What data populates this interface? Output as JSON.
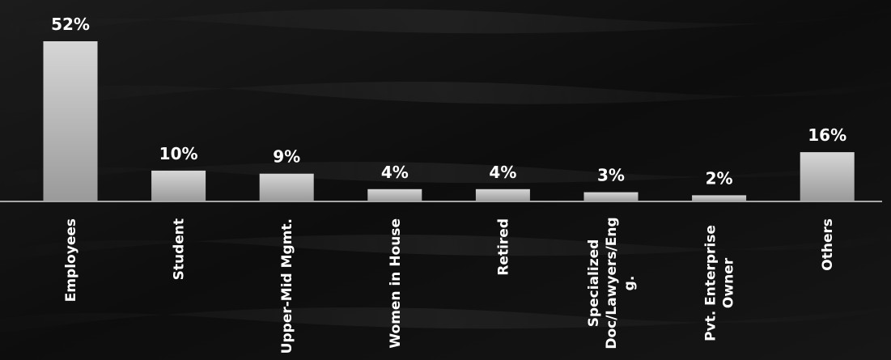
{
  "chart_data": {
    "type": "bar",
    "categories": [
      "Employees",
      "Student",
      "Upper-Mid Mgmt.",
      "Women in House",
      "Retired",
      "Specialized Doc/Lawyers/Eng g.",
      "Pvt. Enterprise Owner",
      "Others"
    ],
    "category_lines": [
      [
        "Employees"
      ],
      [
        "Student"
      ],
      [
        "Upper-Mid Mgmt."
      ],
      [
        "Women in House"
      ],
      [
        "Retired"
      ],
      [
        "Specialized",
        "Doc/Lawyers/Eng",
        "g."
      ],
      [
        "Pvt. Enterprise",
        "Owner"
      ],
      [
        "Others"
      ]
    ],
    "values": [
      52,
      10,
      9,
      4,
      4,
      3,
      2,
      16
    ],
    "value_labels": [
      "52%",
      "10%",
      "9%",
      "4%",
      "4%",
      "3%",
      "2%",
      "16%"
    ],
    "ylim": [
      0,
      52
    ],
    "grid": false,
    "legend": "none",
    "colors": {
      "bar_top": "#d6d6d6",
      "bar_bottom": "#9a9a9a",
      "baseline": "#a8a8a8",
      "text": "#ffffff",
      "background": "#111111"
    }
  }
}
